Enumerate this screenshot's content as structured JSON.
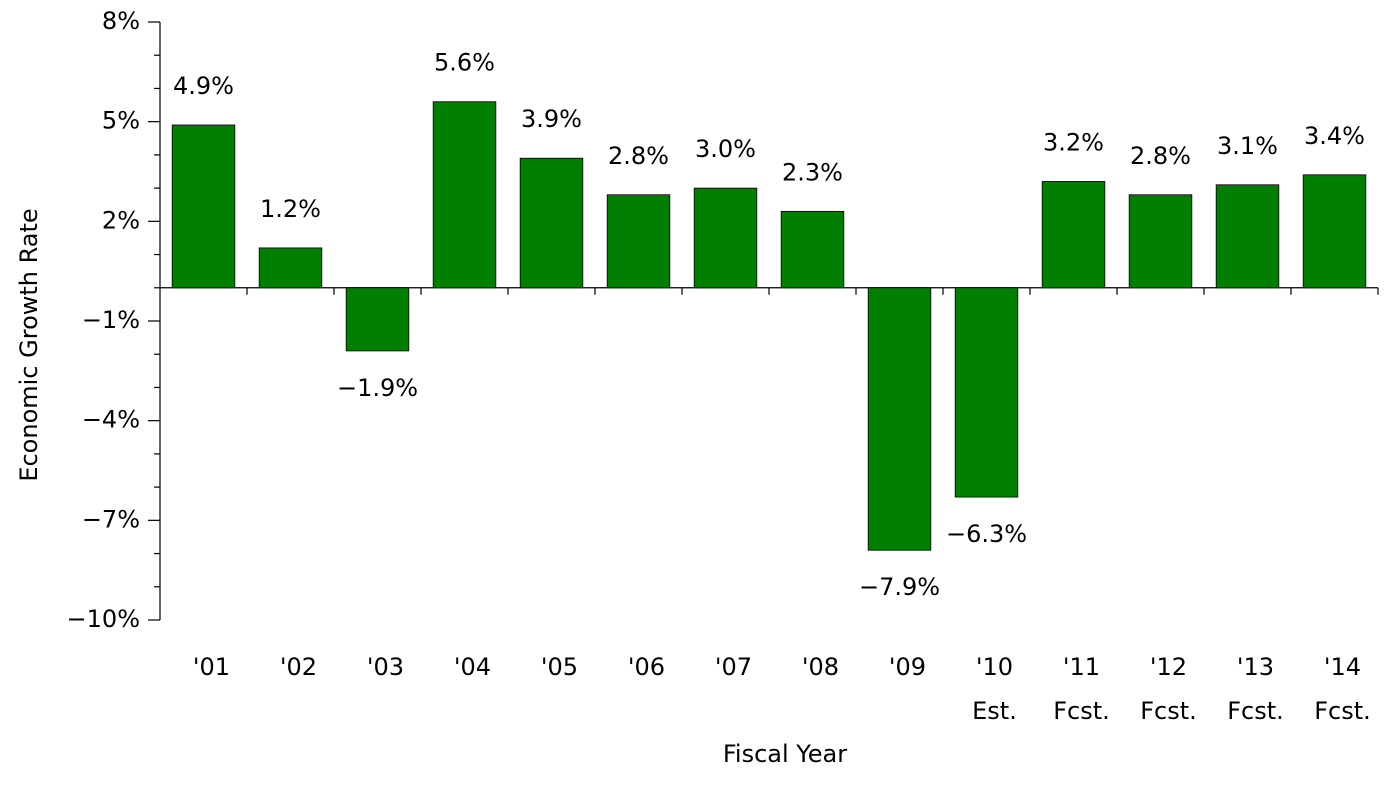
{
  "chart_data": {
    "type": "bar",
    "y_label": "Economic Growth Rate",
    "x_label": "Fiscal Year",
    "categories": [
      "'01",
      "'02",
      "'03",
      "'04",
      "'05",
      "'06",
      "'07",
      "'08",
      "'09",
      "'10",
      "'11",
      "'12",
      "'13",
      "'14"
    ],
    "category_notes": [
      null,
      null,
      null,
      null,
      null,
      null,
      null,
      null,
      null,
      "Est.",
      "Fcst.",
      "Fcst.",
      "Fcst.",
      "Fcst."
    ],
    "values": [
      4.9,
      1.2,
      -1.9,
      5.6,
      3.9,
      2.8,
      3.0,
      2.3,
      -7.9,
      -6.3,
      3.2,
      2.8,
      3.1,
      3.4
    ],
    "value_labels": [
      "4.9%",
      "1.2%",
      "−1.9%",
      "5.6%",
      "3.9%",
      "2.8%",
      "3.0%",
      "2.3%",
      "−7.9%",
      "−6.3%",
      "3.2%",
      "2.8%",
      "3.1%",
      "3.4%"
    ],
    "color": "#007f00",
    "ylim": [
      -10,
      8
    ],
    "yticks": [
      {
        "value": -10,
        "label": "−10%"
      },
      {
        "value": -7,
        "label": "−7%"
      },
      {
        "value": -4,
        "label": "−4%"
      },
      {
        "value": -1,
        "label": "−1%"
      },
      {
        "value": 2,
        "label": "2%"
      },
      {
        "value": 5,
        "label": "5%"
      },
      {
        "value": 8,
        "label": "8%"
      }
    ],
    "yminorticks": [
      -9,
      -8,
      -6,
      -5,
      -3,
      -2,
      0,
      1,
      3,
      4,
      6,
      7
    ],
    "grid": false
  }
}
